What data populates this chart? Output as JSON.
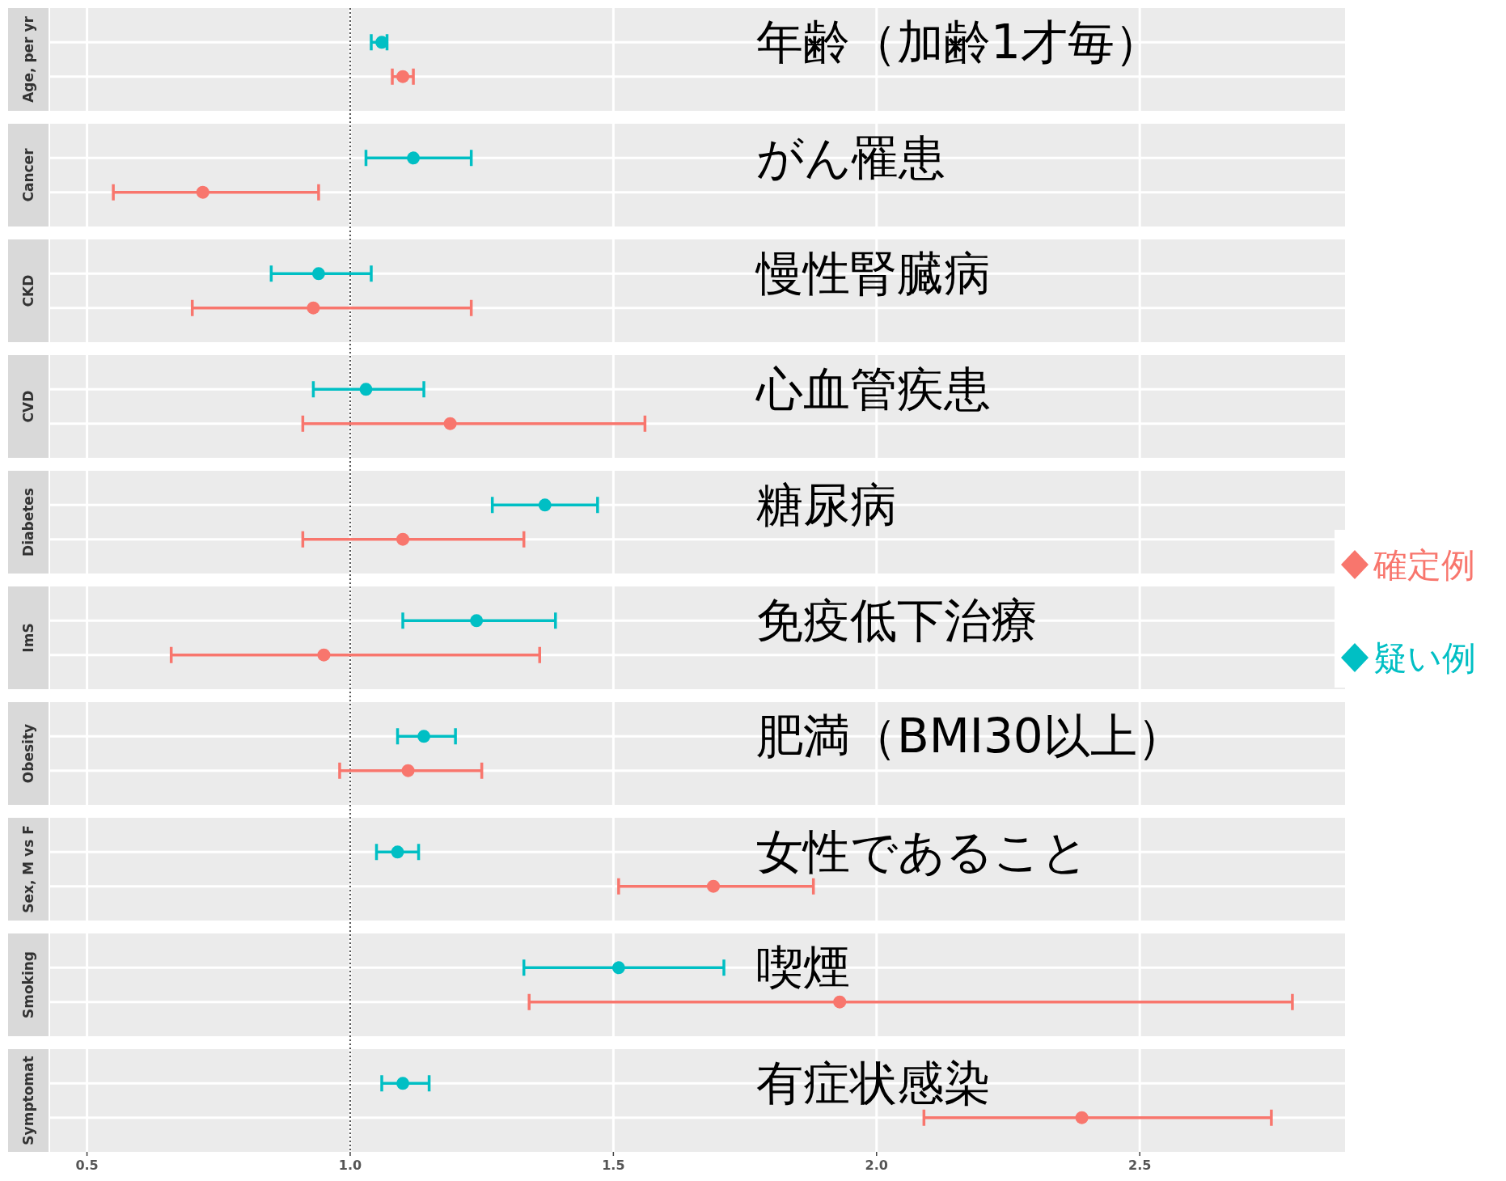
{
  "chart_data": {
    "type": "scatter",
    "orientation": "horizontal",
    "categories": [
      "Age, per yr",
      "Cancer",
      "CKD",
      "CVD",
      "Diabetes",
      "ImS",
      "Obesity",
      "Sex, M vs F",
      "Smoking",
      "Symptomat"
    ],
    "series": [
      {
        "name": "確定例",
        "color": "#f8766d",
        "values": [
          1.1,
          0.72,
          0.93,
          1.19,
          1.1,
          0.95,
          1.11,
          1.69,
          1.93,
          2.39
        ],
        "errors": [
          [
            1.08,
            1.12
          ],
          [
            0.55,
            0.94
          ],
          [
            0.7,
            1.23
          ],
          [
            0.91,
            1.56
          ],
          [
            0.91,
            1.33
          ],
          [
            0.66,
            1.36
          ],
          [
            0.98,
            1.25
          ],
          [
            1.51,
            1.88
          ],
          [
            1.34,
            2.79
          ],
          [
            2.09,
            2.75
          ]
        ]
      },
      {
        "name": "疑い例",
        "color": "#00bfc4",
        "values": [
          1.06,
          1.12,
          0.94,
          1.03,
          1.37,
          1.24,
          1.14,
          1.09,
          1.51,
          1.1
        ],
        "errors": [
          [
            1.04,
            1.07
          ],
          [
            1.03,
            1.23
          ],
          [
            0.85,
            1.04
          ],
          [
            0.93,
            1.14
          ],
          [
            1.27,
            1.47
          ],
          [
            1.1,
            1.39
          ],
          [
            1.09,
            1.2
          ],
          [
            1.05,
            1.13
          ],
          [
            1.33,
            1.71
          ],
          [
            1.06,
            1.15
          ]
        ]
      }
    ],
    "xlim": [
      0.43,
      2.89
    ],
    "xticks": [
      0.5,
      {
        "value": 1,
        "label": "1.0"
      },
      1.5,
      {
        "value": 2,
        "label": "2.0"
      },
      2.5
    ],
    "grid": true,
    "legend": "right",
    "marker": "circle",
    "ref_lines": [
      {
        "axis": "x",
        "value": 1,
        "line_style": "dotted"
      }
    ],
    "annotations": [
      "年齢（加齢1才毎）",
      "がん罹患",
      "慢性腎臓病",
      "心血管疾患",
      "糖尿病",
      "免疫低下治療",
      "肥満（BMI30以上）",
      "女性であること",
      "喫煙",
      "有症状感染"
    ]
  }
}
